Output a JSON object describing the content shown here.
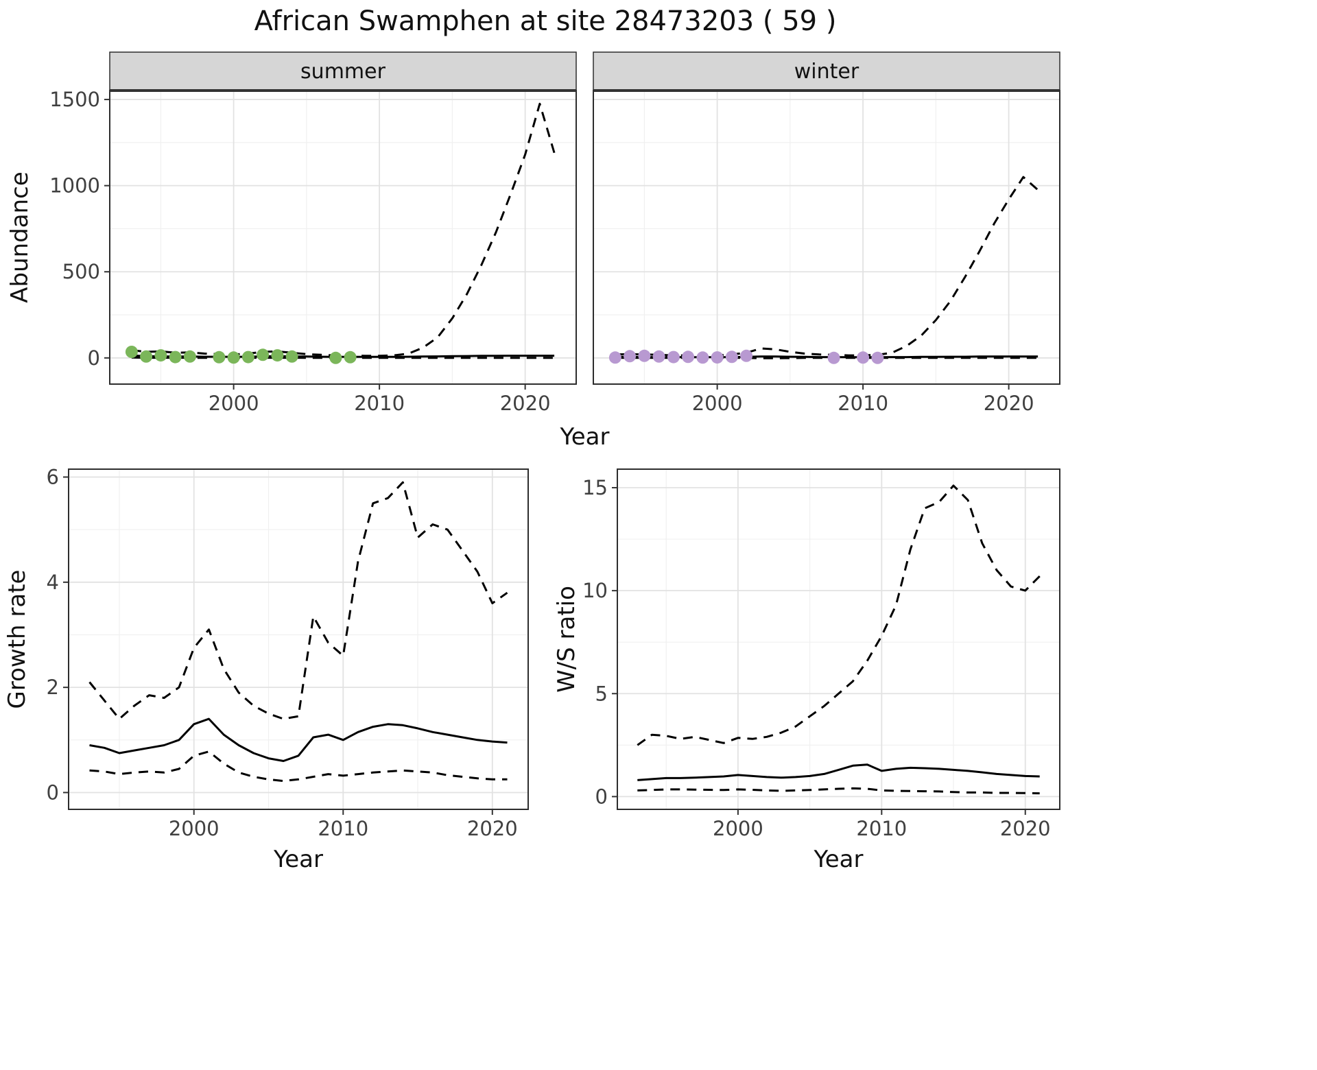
{
  "title": "African Swamphen at site 28473203 ( 59 )",
  "colors": {
    "background": "#ffffff",
    "panel_bg": "#ffffff",
    "panel_border": "#2d2d2d",
    "grid_major": "#e2e2e2",
    "grid_minor": "#f0f0f0",
    "strip_bg": "#d6d6d6",
    "line": "#000000",
    "tick": "#333333",
    "tick_label": "#404040",
    "text": "#111111",
    "summer_points": "#7bb65a",
    "winter_points": "#b899d1"
  },
  "chart_data": [
    {
      "id": "abundance",
      "type": "line",
      "xlabel": "Year",
      "ylabel": "Abundance",
      "xlim": [
        1991.5,
        2023.5
      ],
      "ylim": [
        -152,
        1552
      ],
      "xticks": [
        2000,
        2010,
        2020
      ],
      "yticks": [
        0,
        500,
        1000,
        1500
      ],
      "facets": [
        {
          "label": "summer",
          "points": {
            "name": "observed",
            "color": "#7bb65a",
            "x": [
              1993,
              1994,
              1995,
              1996,
              1997,
              1999,
              2000,
              2001,
              2002,
              2003,
              2004,
              2007,
              2008
            ],
            "y": [
              35,
              8,
              15,
              5,
              8,
              4,
              2,
              5,
              18,
              15,
              8,
              0,
              4
            ]
          },
          "series": [
            {
              "name": "upper-ci",
              "style": "dashed",
              "x": [
                1993,
                1994,
                1995,
                1996,
                1997,
                1998,
                1999,
                2000,
                2001,
                2002,
                2003,
                2004,
                2005,
                2006,
                2007,
                2008,
                2009,
                2010,
                2011,
                2012,
                2013,
                2014,
                2015,
                2016,
                2017,
                2018,
                2019,
                2020,
                2021,
                2022
              ],
              "y": [
                45,
                35,
                38,
                30,
                32,
                25,
                22,
                20,
                25,
                35,
                38,
                30,
                22,
                18,
                15,
                15,
                12,
                12,
                15,
                25,
                60,
                120,
                230,
                370,
                540,
                730,
                950,
                1180,
                1475,
                1190
              ]
            },
            {
              "name": "fit",
              "style": "solid",
              "x": [
                1993,
                1994,
                1995,
                1996,
                1997,
                1998,
                1999,
                2000,
                2001,
                2002,
                2003,
                2004,
                2005,
                2006,
                2007,
                2008,
                2009,
                2010,
                2011,
                2012,
                2013,
                2014,
                2015,
                2016,
                2017,
                2018,
                2019,
                2020,
                2021,
                2022
              ],
              "y": [
                14,
                10,
                9,
                8,
                8,
                7,
                7,
                6,
                7,
                9,
                10,
                9,
                8,
                7,
                6,
                6,
                6,
                6,
                6,
                7,
                8,
                9,
                10,
                11,
                12,
                12,
                13,
                13,
                13,
                13
              ]
            },
            {
              "name": "lower-ci",
              "style": "dashed",
              "x": [
                1993,
                1994,
                1995,
                1996,
                1997,
                1998,
                1999,
                2000,
                2001,
                2002,
                2003,
                2004,
                2005,
                2006,
                2007,
                2008,
                2009,
                2010,
                2011,
                2012,
                2013,
                2014,
                2015,
                2016,
                2017,
                2018,
                2019,
                2020,
                2021,
                2022
              ],
              "y": [
                2,
                1,
                1,
                1,
                1,
                0,
                0,
                0,
                0,
                1,
                1,
                1,
                0,
                0,
                0,
                0,
                0,
                0,
                0,
                0,
                0,
                0,
                0,
                0,
                0,
                0,
                0,
                0,
                0,
                0
              ]
            }
          ]
        },
        {
          "label": "winter",
          "points": {
            "name": "observed",
            "color": "#b899d1",
            "x": [
              1993,
              1994,
              1995,
              1996,
              1997,
              1998,
              1999,
              2000,
              2001,
              2002,
              2008,
              2010,
              2011
            ],
            "y": [
              2,
              10,
              12,
              8,
              5,
              6,
              2,
              3,
              6,
              12,
              0,
              2,
              0
            ]
          },
          "series": [
            {
              "name": "upper-ci",
              "style": "dashed",
              "x": [
                1993,
                1994,
                1995,
                1996,
                1997,
                1998,
                1999,
                2000,
                2001,
                2002,
                2003,
                2004,
                2005,
                2006,
                2007,
                2008,
                2009,
                2010,
                2011,
                2012,
                2013,
                2014,
                2015,
                2016,
                2017,
                2018,
                2019,
                2020,
                2021,
                2022
              ],
              "y": [
                20,
                22,
                20,
                18,
                15,
                15,
                12,
                15,
                20,
                30,
                55,
                50,
                35,
                25,
                20,
                18,
                15,
                15,
                18,
                30,
                70,
                130,
                220,
                330,
                470,
                620,
                780,
                920,
                1050,
                975
              ]
            },
            {
              "name": "fit",
              "style": "solid",
              "x": [
                1993,
                1994,
                1995,
                1996,
                1997,
                1998,
                1999,
                2000,
                2001,
                2002,
                2003,
                2004,
                2005,
                2006,
                2007,
                2008,
                2009,
                2010,
                2011,
                2012,
                2013,
                2014,
                2015,
                2016,
                2017,
                2018,
                2019,
                2020,
                2021,
                2022
              ],
              "y": [
                6,
                6,
                5,
                5,
                5,
                4,
                4,
                4,
                5,
                6,
                8,
                8,
                7,
                6,
                5,
                5,
                4,
                4,
                4,
                5,
                5,
                6,
                6,
                7,
                7,
                8,
                8,
                8,
                8,
                8
              ]
            },
            {
              "name": "lower-ci",
              "style": "dashed",
              "x": [
                1993,
                1994,
                1995,
                1996,
                1997,
                1998,
                1999,
                2000,
                2001,
                2002,
                2003,
                2004,
                2005,
                2006,
                2007,
                2008,
                2009,
                2010,
                2011,
                2012,
                2013,
                2014,
                2015,
                2016,
                2017,
                2018,
                2019,
                2020,
                2021,
                2022
              ],
              "y": [
                0,
                0,
                0,
                0,
                0,
                0,
                0,
                0,
                0,
                0,
                -2,
                -2,
                -1,
                0,
                0,
                0,
                0,
                0,
                0,
                0,
                0,
                0,
                0,
                0,
                0,
                0,
                0,
                0,
                0,
                0
              ]
            }
          ]
        }
      ]
    },
    {
      "id": "growth_rate",
      "type": "line",
      "xlabel": "Year",
      "ylabel": "Growth rate",
      "xlim": [
        1991.6,
        2022.4
      ],
      "ylim": [
        -0.32,
        6.15
      ],
      "xticks": [
        2000,
        2010,
        2020
      ],
      "yticks": [
        0,
        2,
        4,
        6
      ],
      "series": [
        {
          "name": "upper-ci",
          "style": "dashed",
          "x": [
            1993,
            1994,
            1995,
            1996,
            1997,
            1998,
            1999,
            2000,
            2001,
            2002,
            2003,
            2004,
            2005,
            2006,
            2007,
            2008,
            2009,
            2010,
            2011,
            2012,
            2013,
            2014,
            2015,
            2016,
            2017,
            2018,
            2019,
            2020,
            2021
          ],
          "y": [
            2.1,
            1.75,
            1.4,
            1.65,
            1.85,
            1.8,
            2.0,
            2.75,
            3.1,
            2.35,
            1.9,
            1.65,
            1.5,
            1.4,
            1.45,
            3.35,
            2.85,
            2.6,
            4.4,
            5.5,
            5.6,
            5.9,
            4.85,
            5.1,
            5.0,
            4.6,
            4.2,
            3.6,
            3.8
          ]
        },
        {
          "name": "fit",
          "style": "solid",
          "x": [
            1993,
            1994,
            1995,
            1996,
            1997,
            1998,
            1999,
            2000,
            2001,
            2002,
            2003,
            2004,
            2005,
            2006,
            2007,
            2008,
            2009,
            2010,
            2011,
            2012,
            2013,
            2014,
            2015,
            2016,
            2017,
            2018,
            2019,
            2020,
            2021
          ],
          "y": [
            0.9,
            0.85,
            0.75,
            0.8,
            0.85,
            0.9,
            1.0,
            1.3,
            1.4,
            1.1,
            0.9,
            0.75,
            0.65,
            0.6,
            0.7,
            1.05,
            1.1,
            1.0,
            1.15,
            1.25,
            1.3,
            1.28,
            1.22,
            1.15,
            1.1,
            1.05,
            1.0,
            0.97,
            0.95
          ]
        },
        {
          "name": "lower-ci",
          "style": "dashed",
          "x": [
            1993,
            1994,
            1995,
            1996,
            1997,
            1998,
            1999,
            2000,
            2001,
            2002,
            2003,
            2004,
            2005,
            2006,
            2007,
            2008,
            2009,
            2010,
            2011,
            2012,
            2013,
            2014,
            2015,
            2016,
            2017,
            2018,
            2019,
            2020,
            2021
          ],
          "y": [
            0.42,
            0.4,
            0.35,
            0.38,
            0.4,
            0.38,
            0.45,
            0.7,
            0.78,
            0.55,
            0.38,
            0.3,
            0.25,
            0.22,
            0.25,
            0.3,
            0.35,
            0.32,
            0.35,
            0.38,
            0.4,
            0.42,
            0.4,
            0.38,
            0.33,
            0.3,
            0.27,
            0.25,
            0.25
          ]
        }
      ]
    },
    {
      "id": "ws_ratio",
      "type": "line",
      "xlabel": "Year",
      "ylabel": "W/S ratio",
      "xlim": [
        1991.6,
        2022.4
      ],
      "ylim": [
        -0.62,
        15.9
      ],
      "xticks": [
        2000,
        2010,
        2020
      ],
      "yticks": [
        0,
        5,
        10,
        15
      ],
      "series": [
        {
          "name": "upper-ci",
          "style": "dashed",
          "x": [
            1993,
            1994,
            1995,
            1996,
            1997,
            1998,
            1999,
            2000,
            2001,
            2002,
            2003,
            2004,
            2005,
            2006,
            2007,
            2008,
            2009,
            2010,
            2011,
            2012,
            2013,
            2014,
            2015,
            2016,
            2017,
            2018,
            2019,
            2020,
            2021
          ],
          "y": [
            2.5,
            3.0,
            2.95,
            2.8,
            2.9,
            2.75,
            2.6,
            2.85,
            2.8,
            2.9,
            3.1,
            3.4,
            3.9,
            4.4,
            5.0,
            5.6,
            6.6,
            7.8,
            9.3,
            12.0,
            14.0,
            14.3,
            15.1,
            14.4,
            12.3,
            11.0,
            10.2,
            10.0,
            10.7
          ]
        },
        {
          "name": "fit",
          "style": "solid",
          "x": [
            1993,
            1994,
            1995,
            1996,
            1997,
            1998,
            1999,
            2000,
            2001,
            2002,
            2003,
            2004,
            2005,
            2006,
            2007,
            2008,
            2009,
            2010,
            2011,
            2012,
            2013,
            2014,
            2015,
            2016,
            2017,
            2018,
            2019,
            2020,
            2021
          ],
          "y": [
            0.8,
            0.85,
            0.9,
            0.9,
            0.92,
            0.95,
            0.98,
            1.05,
            1.0,
            0.95,
            0.92,
            0.95,
            1.0,
            1.1,
            1.3,
            1.5,
            1.55,
            1.25,
            1.35,
            1.4,
            1.38,
            1.35,
            1.3,
            1.25,
            1.18,
            1.1,
            1.05,
            1.0,
            0.98
          ]
        },
        {
          "name": "lower-ci",
          "style": "dashed",
          "x": [
            1993,
            1994,
            1995,
            1996,
            1997,
            1998,
            1999,
            2000,
            2001,
            2002,
            2003,
            2004,
            2005,
            2006,
            2007,
            2008,
            2009,
            2010,
            2011,
            2012,
            2013,
            2014,
            2015,
            2016,
            2017,
            2018,
            2019,
            2020,
            2021
          ],
          "y": [
            0.3,
            0.32,
            0.35,
            0.35,
            0.34,
            0.33,
            0.32,
            0.35,
            0.33,
            0.3,
            0.28,
            0.3,
            0.32,
            0.35,
            0.38,
            0.4,
            0.38,
            0.3,
            0.28,
            0.27,
            0.26,
            0.25,
            0.22,
            0.2,
            0.2,
            0.18,
            0.18,
            0.17,
            0.16
          ]
        }
      ]
    }
  ]
}
